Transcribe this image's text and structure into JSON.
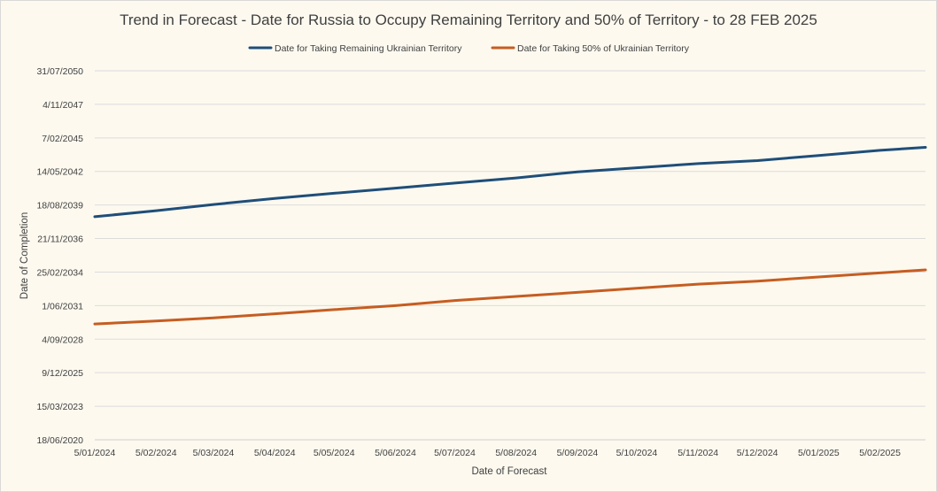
{
  "chart_data": {
    "type": "line",
    "title": "Trend in Forecast - Date for Russia to Occupy Remaining Territory and 50% of Territory - to 28 FEB 2025",
    "xlabel": "Date of Forecast",
    "ylabel": "Date of Completion",
    "x_ticks": [
      "5/01/2024",
      "5/02/2024",
      "5/03/2024",
      "5/04/2024",
      "5/05/2024",
      "5/06/2024",
      "5/07/2024",
      "5/08/2024",
      "5/09/2024",
      "5/10/2024",
      "5/11/2024",
      "5/12/2024",
      "5/01/2025",
      "5/02/2025"
    ],
    "y_ticks": [
      "18/06/2020",
      "15/03/2023",
      "9/12/2025",
      "4/09/2028",
      "1/06/2031",
      "25/02/2034",
      "21/11/2036",
      "18/08/2039",
      "14/05/2042",
      "7/02/2045",
      "4/11/2047",
      "31/07/2050"
    ],
    "ylim": [
      "18/06/2020",
      "31/07/2050"
    ],
    "xlim": [
      "5/01/2024",
      "28/02/2025"
    ],
    "legend_position": "top",
    "grid": {
      "horizontal": true,
      "vertical": false
    },
    "series": [
      {
        "name": "Date for Taking Remaining Ukrainian Territory",
        "color": "#1f4e79",
        "x": [
          "5/01/2024",
          "5/02/2024",
          "5/03/2024",
          "5/04/2024",
          "5/05/2024",
          "5/06/2024",
          "5/07/2024",
          "5/08/2024",
          "5/09/2024",
          "5/10/2024",
          "5/11/2024",
          "5/12/2024",
          "5/01/2025",
          "5/02/2025",
          "28/02/2025"
        ],
        "y": [
          "1/09/2038",
          "1/03/2039",
          "1/09/2039",
          "1/03/2040",
          "1/08/2040",
          "1/01/2041",
          "1/06/2041",
          "1/11/2041",
          "1/05/2042",
          "1/09/2042",
          "1/01/2043",
          "1/04/2043",
          "1/09/2043",
          "1/02/2044",
          "1/05/2044"
        ]
      },
      {
        "name": "Date for Taking 50% of Ukrainian Territory",
        "color": "#c65d21",
        "x": [
          "5/01/2024",
          "5/02/2024",
          "5/03/2024",
          "5/04/2024",
          "5/05/2024",
          "5/06/2024",
          "5/07/2024",
          "5/08/2024",
          "5/09/2024",
          "5/10/2024",
          "5/11/2024",
          "5/12/2024",
          "5/01/2025",
          "5/02/2025",
          "28/02/2025"
        ],
        "y": [
          "1/12/2029",
          "1/03/2030",
          "1/06/2030",
          "1/10/2030",
          "1/02/2031",
          "1/06/2031",
          "1/11/2031",
          "1/03/2032",
          "1/07/2032",
          "1/11/2032",
          "1/03/2033",
          "1/06/2033",
          "1/10/2033",
          "1/02/2034",
          "1/05/2034"
        ]
      }
    ]
  }
}
